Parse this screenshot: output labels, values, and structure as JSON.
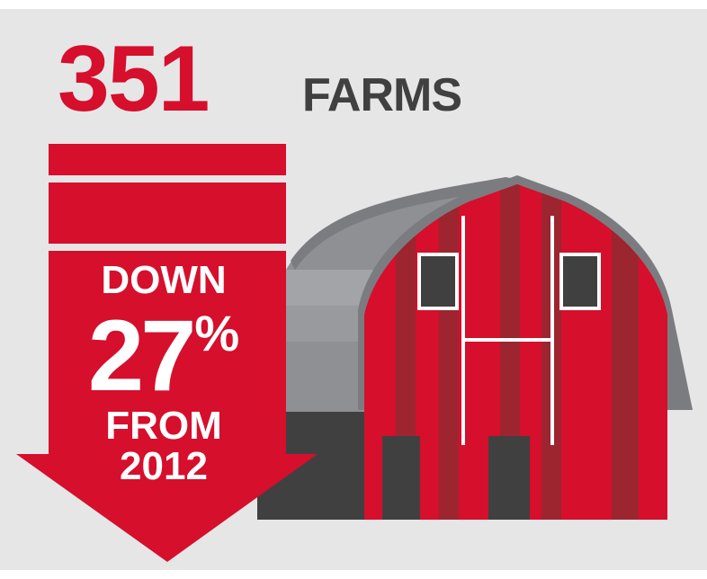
{
  "headline": {
    "number": "351",
    "unit": "FARMS"
  },
  "change": {
    "direction_label": "DOWN",
    "percent": "27",
    "percent_sign": "%",
    "from_label": "FROM",
    "year": "2012"
  },
  "colors": {
    "background": "#e6e6e7",
    "accent_red": "#d50f2c",
    "text_dark": "#404040",
    "barn_red": "#d50f2c",
    "barn_stripe": "#9c2530",
    "roof_gray": "#8f9093",
    "window_dark": "#404040"
  }
}
